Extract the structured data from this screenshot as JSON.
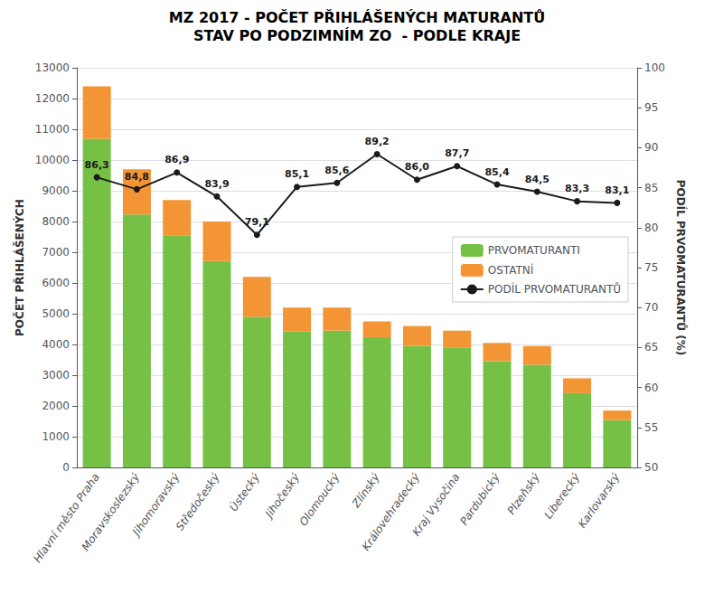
{
  "chart_data": {
    "type": "bar",
    "title": "MZ 2017 - POČET PŘIHLÁŠENÝCH MATURANTŮ",
    "subtitle": "STAV PO PODZIMNÍM ZO  - PODLE KRAJE",
    "categories": [
      "Hlavní město Praha",
      "Moravskoslezský",
      "Jihomoravský",
      "Středočeský",
      "Ústecký",
      "Jihočeský",
      "Olomoucký",
      "Zlínský",
      "Královehradecký",
      "Kraj Vysočina",
      "Pardubický",
      "Plzeňský",
      "Liberecký",
      "Karlovarský"
    ],
    "series": [
      {
        "name": "PRVOMATURANTI",
        "color": "#77C046",
        "values": [
          10694,
          8230,
          7548,
          6712,
          4900,
          4423,
          4451,
          4237,
          3956,
          3903,
          3459,
          3339,
          2416,
          1538
        ]
      },
      {
        "name": "OSTATNÍ",
        "color": "#F49535",
        "values": [
          1706,
          1470,
          1152,
          1288,
          1300,
          777,
          749,
          513,
          644,
          547,
          591,
          611,
          484,
          312
        ]
      },
      {
        "name": "PODÍL PRVOMATURANTŮ",
        "type": "line",
        "axis": "y2",
        "color": "#1A1A1A",
        "marker": "circle",
        "values": [
          86.3,
          84.8,
          86.9,
          83.9,
          79.1,
          85.1,
          85.6,
          89.2,
          86.0,
          87.7,
          85.4,
          84.5,
          83.3,
          83.1
        ],
        "value_labels": [
          "86,3",
          "84,8",
          "86,9",
          "83,9",
          "79,1",
          "85,1",
          "85,6",
          "89,2",
          "86,0",
          "87,7",
          "85,4",
          "84,5",
          "83,3",
          "83,1"
        ],
        "data_labels": true
      }
    ],
    "stacked": true,
    "ylabel": "POČET PŘIHLÁŠENÝCH",
    "y2label": "PODÍL PRVOMATURANTŮ (%)",
    "ylim": [
      0,
      13000
    ],
    "yticks": [
      0,
      1000,
      2000,
      3000,
      4000,
      5000,
      6000,
      7000,
      8000,
      9000,
      10000,
      11000,
      12000,
      13000
    ],
    "y2lim": [
      50,
      100
    ],
    "y2ticks": [
      50,
      55,
      60,
      65,
      70,
      75,
      80,
      85,
      90,
      95,
      100
    ],
    "grid": true,
    "legend": "right"
  }
}
